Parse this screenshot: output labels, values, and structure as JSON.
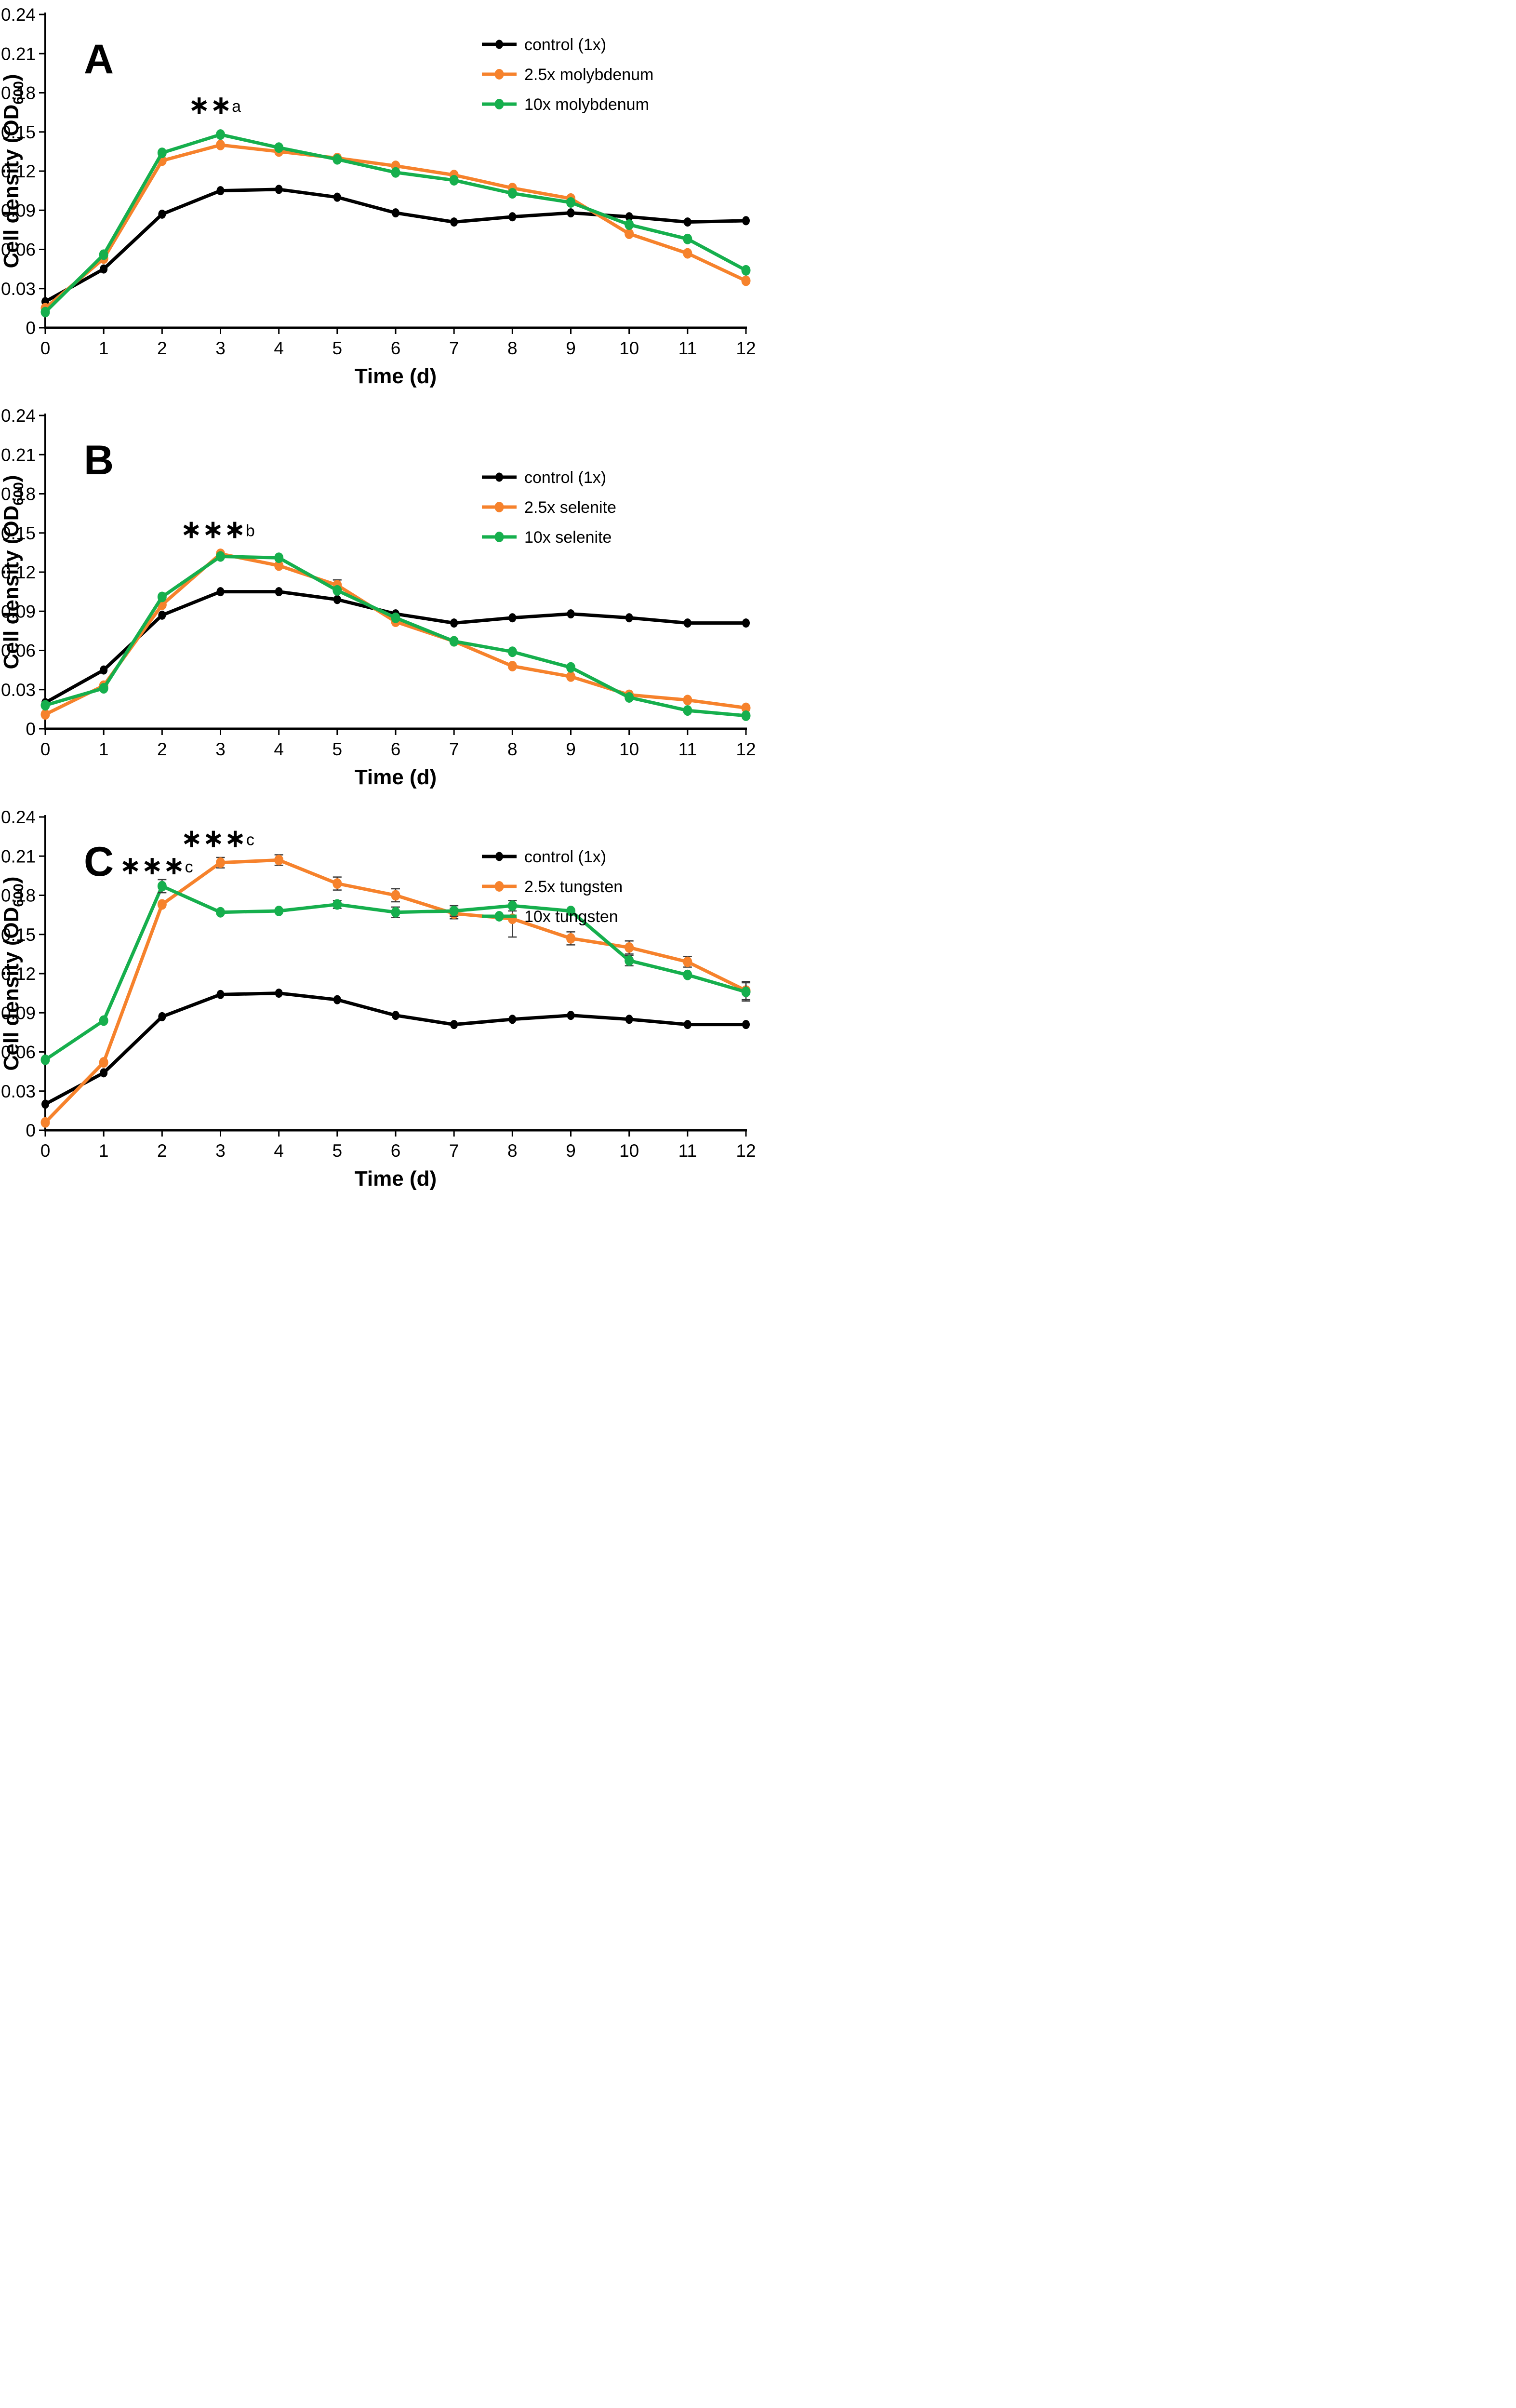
{
  "page": {
    "background": "#ffffff",
    "figure_type": "three-panel line figure, growth curves"
  },
  "shared_axes": {
    "x_label": "Time (d)",
    "y_label_prefix": "Cell density (OD",
    "y_label_sub": "600",
    "y_label_suffix": ")",
    "x_tick_labels": [
      "0",
      "1",
      "2",
      "3",
      "4",
      "5",
      "6",
      "7",
      "8",
      "9",
      "10",
      "11",
      "12"
    ],
    "y_tick_labels": [
      "0",
      "0.03",
      "0.06",
      "0.09",
      "0.12",
      "0.15",
      "0.18",
      "0.21",
      "0.24"
    ],
    "xlim": [
      0,
      12
    ],
    "ylim": [
      0,
      0.24
    ],
    "grid": false,
    "error_bar_color": "#3a3a3a"
  },
  "chart_data": [
    {
      "type": "line",
      "panel_label": "A",
      "title": "",
      "xlabel": "Time (d)",
      "ylabel": "Cell density (OD600)",
      "x": [
        0,
        1,
        2,
        3,
        4,
        5,
        6,
        7,
        8,
        9,
        10,
        11,
        12
      ],
      "xlim": [
        0,
        12
      ],
      "ylim": [
        0,
        0.24
      ],
      "legend_position": "top-right",
      "series": [
        {
          "name": "control (1x)",
          "color": "#000000",
          "values": [
            0.02,
            0.045,
            0.087,
            0.105,
            0.106,
            0.1,
            0.088,
            0.081,
            0.085,
            0.088,
            0.085,
            0.081,
            0.082
          ],
          "errors": [
            0,
            0,
            0,
            0,
            0,
            0,
            0,
            0,
            0,
            0,
            0,
            0,
            0
          ]
        },
        {
          "name": "2.5x molybdenum",
          "color": "#F6822C",
          "values": [
            0.015,
            0.053,
            0.128,
            0.14,
            0.135,
            0.13,
            0.124,
            0.117,
            0.107,
            0.099,
            0.072,
            0.057,
            0.036
          ],
          "errors": [
            0,
            0,
            0,
            0,
            0,
            0,
            0,
            0,
            0,
            0,
            0,
            0,
            0
          ]
        },
        {
          "name": "10x molybdenum",
          "color": "#16AF4D",
          "values": [
            0.012,
            0.056,
            0.134,
            0.148,
            0.138,
            0.129,
            0.119,
            0.113,
            0.103,
            0.096,
            0.079,
            0.068,
            0.044
          ],
          "errors": [
            0,
            0,
            0,
            0,
            0,
            0,
            0,
            0,
            0,
            0,
            0,
            0,
            0
          ]
        }
      ],
      "annotations": [
        {
          "stars": "∗∗",
          "letter": "a",
          "x": 2.9,
          "y": 0.164
        }
      ]
    },
    {
      "type": "line",
      "panel_label": "B",
      "title": "",
      "xlabel": "Time (d)",
      "ylabel": "Cell density (OD600)",
      "x": [
        0,
        1,
        2,
        3,
        4,
        5,
        6,
        7,
        8,
        9,
        10,
        11,
        12
      ],
      "xlim": [
        0,
        12
      ],
      "ylim": [
        0,
        0.24
      ],
      "legend_position": "top-right",
      "series": [
        {
          "name": "control (1x)",
          "color": "#000000",
          "values": [
            0.02,
            0.045,
            0.087,
            0.105,
            0.105,
            0.099,
            0.088,
            0.081,
            0.085,
            0.088,
            0.085,
            0.081,
            0.081
          ],
          "errors": [
            0,
            0,
            0,
            0,
            0,
            0,
            0,
            0,
            0,
            0,
            0,
            0,
            0
          ]
        },
        {
          "name": "2.5x selenite",
          "color": "#F6822C",
          "values": [
            0.011,
            0.033,
            0.095,
            0.134,
            0.125,
            0.11,
            0.082,
            0.067,
            0.048,
            0.04,
            0.026,
            0.022,
            0.016
          ],
          "errors": [
            0,
            0,
            0,
            0,
            0,
            0.004,
            0,
            0,
            0,
            0,
            0,
            0,
            0
          ]
        },
        {
          "name": "10x selenite",
          "color": "#16AF4D",
          "values": [
            0.018,
            0.031,
            0.101,
            0.132,
            0.131,
            0.106,
            0.085,
            0.067,
            0.059,
            0.047,
            0.024,
            0.014,
            0.01
          ],
          "errors": [
            0,
            0,
            0,
            0,
            0,
            0,
            0,
            0,
            0,
            0,
            0,
            0,
            0
          ]
        }
      ],
      "annotations": [
        {
          "stars": "∗∗∗",
          "letter": "b",
          "x": 2.95,
          "y": 0.146
        }
      ]
    },
    {
      "type": "line",
      "panel_label": "C",
      "title": "",
      "xlabel": "Time (d)",
      "ylabel": "Cell density (OD600)",
      "x": [
        0,
        1,
        2,
        3,
        4,
        5,
        6,
        7,
        8,
        9,
        10,
        11,
        12
      ],
      "xlim": [
        0,
        12
      ],
      "ylim": [
        0,
        0.24
      ],
      "legend_position": "top-right",
      "series": [
        {
          "name": "control (1x)",
          "color": "#000000",
          "values": [
            0.02,
            0.044,
            0.087,
            0.104,
            0.105,
            0.1,
            0.088,
            0.081,
            0.085,
            0.088,
            0.085,
            0.081,
            0.081
          ],
          "errors": [
            0,
            0,
            0,
            0,
            0,
            0,
            0,
            0,
            0,
            0,
            0,
            0,
            0
          ]
        },
        {
          "name": "2.5x tungsten",
          "color": "#F6822C",
          "values": [
            0.006,
            0.052,
            0.173,
            0.205,
            0.207,
            0.189,
            0.18,
            0.166,
            0.162,
            0.147,
            0.14,
            0.129,
            0.107
          ],
          "errors": [
            0,
            0,
            0,
            0.004,
            0.004,
            0.005,
            0.005,
            0.004,
            0.014,
            0.005,
            0.005,
            0.004,
            0.007
          ]
        },
        {
          "name": "10x tungsten",
          "color": "#16AF4D",
          "values": [
            0.054,
            0.084,
            0.187,
            0.167,
            0.168,
            0.173,
            0.167,
            0.168,
            0.172,
            0.168,
            0.13,
            0.119,
            0.106
          ],
          "errors": [
            0,
            0,
            0.005,
            0,
            0,
            0.003,
            0.004,
            0.004,
            0.004,
            0,
            0.004,
            0,
            0.007
          ]
        }
      ],
      "annotations": [
        {
          "stars": "∗∗∗",
          "letter": "c",
          "x": 1.9,
          "y": 0.196
        },
        {
          "stars": "∗∗∗",
          "letter": "c",
          "x": 2.95,
          "y": 0.217
        }
      ]
    }
  ]
}
